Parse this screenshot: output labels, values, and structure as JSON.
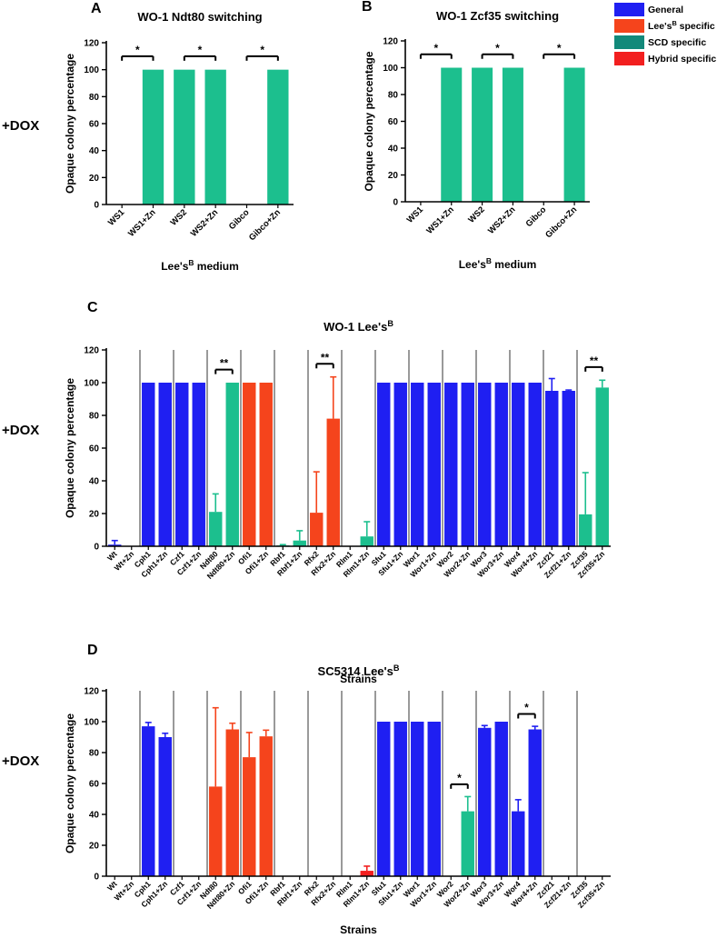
{
  "colors": {
    "General": "#1f1ff2",
    "Lee's specific": "#f5441c",
    "SCD specific": "#1cbf8e",
    "Hybrid specific": "#f21f1f"
  },
  "legend": {
    "items": [
      {
        "key": "General",
        "label": "General",
        "color": "#1f1ff2"
      },
      {
        "key": "Lee's specific",
        "label": "Lee's",
        "sup": "B",
        "suffix": " specific",
        "color": "#f5441c"
      },
      {
        "key": "SCD specific",
        "label": "SCD specific",
        "color": "#12897a"
      },
      {
        "key": "Hybrid specific",
        "label": "Hybrid specific",
        "color": "#f21f1f"
      }
    ]
  },
  "side_labels": [
    "+DOX",
    "+DOX",
    "+DOX"
  ],
  "chart_data": [
    {
      "panel": "A",
      "type": "bar",
      "title": "WO-1 Ndt80 switching",
      "xlabel": "Lee's",
      "xlabel_sup": "B",
      "xlabel_suffix": " medium",
      "ylabel": "Opaque colony percentage",
      "ylim": [
        0,
        120
      ],
      "yticks": [
        0,
        20,
        40,
        60,
        80,
        100,
        120
      ],
      "categories": [
        "WS1",
        "WS1+Zn",
        "WS2",
        "WS2+Zn",
        "Gibco",
        "Gibco+Zn"
      ],
      "values": [
        0,
        100,
        100,
        100,
        0,
        100
      ],
      "groups": [
        "SCD specific",
        "SCD specific",
        "SCD specific",
        "SCD specific",
        "SCD specific",
        "SCD specific"
      ],
      "significance": [
        {
          "from": 0,
          "to": 1,
          "label": "*"
        },
        {
          "from": 2,
          "to": 3,
          "label": "*"
        },
        {
          "from": 4,
          "to": 5,
          "label": "*"
        }
      ]
    },
    {
      "panel": "B",
      "type": "bar",
      "title": "WO-1 Zcf35 switching",
      "xlabel": "Lee's",
      "xlabel_sup": "B",
      "xlabel_suffix": " medium",
      "ylabel": "Opaque colony percentage",
      "ylim": [
        0,
        120
      ],
      "yticks": [
        0,
        20,
        40,
        60,
        80,
        100,
        120
      ],
      "categories": [
        "WS1",
        "WS1+Zn",
        "WS2",
        "WS2+Zn",
        "Gibco",
        "Gibco+Zn"
      ],
      "values": [
        0,
        100,
        100,
        100,
        0,
        100
      ],
      "groups": [
        "SCD specific",
        "SCD specific",
        "SCD specific",
        "SCD specific",
        "SCD specific",
        "SCD specific"
      ],
      "significance": [
        {
          "from": 0,
          "to": 1,
          "label": "*"
        },
        {
          "from": 2,
          "to": 3,
          "label": "*"
        },
        {
          "from": 4,
          "to": 5,
          "label": "*"
        }
      ]
    },
    {
      "panel": "C",
      "type": "bar",
      "title": "WO-1 Lee's",
      "title_sup": "B",
      "xlabel": "Strains",
      "ylabel": "Opaque colony percentage",
      "ylim": [
        0,
        120
      ],
      "yticks": [
        0,
        20,
        40,
        60,
        80,
        100,
        120
      ],
      "categories": [
        "Wt",
        "Wt+Zn",
        "Cph1",
        "Cph1+Zn",
        "Czf1",
        "Czf1+Zn",
        "Ndt80",
        "Ndt80+Zn",
        "Ofi1",
        "Ofi1+Zn",
        "Rbf1",
        "Rbf1+Zn",
        "Rfx2",
        "Rfx2+Zn",
        "Rlm1",
        "Rlm1+Zn",
        "Sfu1",
        "Sfu1+Zn",
        "Wor1",
        "Wor1+Zn",
        "Wor2",
        "Wor2+Zn",
        "Wor3",
        "Wor3+Zn",
        "Wor4",
        "Wor4+Zn",
        "Zcf21",
        "Zcf21+Zn",
        "Zcf35",
        "Zcf35+Zn"
      ],
      "values": [
        1,
        0,
        100,
        100,
        100,
        100,
        21,
        100,
        100,
        100,
        0.5,
        3.5,
        20.5,
        78,
        0,
        6,
        100,
        100,
        100,
        100,
        100,
        100,
        100,
        100,
        100,
        100,
        95,
        95,
        19.5,
        97
      ],
      "errors": [
        2.5,
        0,
        0,
        0,
        0,
        0,
        11,
        0,
        0,
        0,
        0.5,
        6,
        25,
        25.5,
        0,
        9,
        0,
        0,
        0,
        0,
        0,
        0,
        0,
        0,
        0,
        0,
        7.5,
        0.5,
        25.5,
        4.5
      ],
      "groups": [
        "General",
        "General",
        "General",
        "General",
        "General",
        "General",
        "SCD specific",
        "SCD specific",
        "Lee's specific",
        "Lee's specific",
        "SCD specific",
        "SCD specific",
        "Lee's specific",
        "Lee's specific",
        "SCD specific",
        "SCD specific",
        "General",
        "General",
        "General",
        "General",
        "General",
        "General",
        "General",
        "General",
        "General",
        "General",
        "General",
        "General",
        "SCD specific",
        "SCD specific"
      ],
      "significance": [
        {
          "from": 6,
          "to": 7,
          "label": "**"
        },
        {
          "from": 12,
          "to": 13,
          "label": "**"
        },
        {
          "from": 28,
          "to": 29,
          "label": "**"
        }
      ]
    },
    {
      "panel": "D",
      "type": "bar",
      "title": "SC5314 Lee's",
      "title_sup": "B",
      "xlabel": "Strains",
      "ylabel": "Opaque colony percentage",
      "ylim": [
        0,
        120
      ],
      "yticks": [
        0,
        20,
        40,
        60,
        80,
        100,
        120
      ],
      "categories": [
        "Wt",
        "Wt+Zn",
        "Cph1",
        "Cph1+Zn",
        "Czf1",
        "Czf1+Zn",
        "Ndt80",
        "Ndt80+Zn",
        "Ofi1",
        "Ofi1+Zn",
        "Rbf1",
        "Rbf1+Zn",
        "Rfx2",
        "Rfx2+Zn",
        "Rlm1",
        "Rlm1+Zn",
        "Sfu1",
        "Sfu1+Zn",
        "Wor1",
        "Wor1+Zn",
        "Wor2",
        "Wor2+Zn",
        "Wor3",
        "Wor3+Zn",
        "Wor4",
        "Wor4+Zn",
        "Zcf21",
        "Zcf21+Zn",
        "Zcf35",
        "Zcf35+Zn"
      ],
      "values": [
        0,
        0,
        97,
        90,
        0,
        0,
        58,
        95,
        77,
        90.5,
        0,
        0,
        0,
        0,
        0,
        3.5,
        100,
        100,
        100,
        100,
        0,
        42,
        96,
        100,
        42,
        95,
        0,
        0,
        0,
        0
      ],
      "errors": [
        0,
        0,
        2.5,
        2.5,
        0,
        0,
        51,
        4,
        16,
        4,
        0,
        0,
        0,
        0,
        0,
        3,
        0,
        0,
        0,
        0,
        0,
        9.5,
        1.5,
        0,
        7.5,
        2,
        0,
        0,
        0,
        0
      ],
      "groups": [
        "General",
        "General",
        "General",
        "General",
        "General",
        "General",
        "Lee's specific",
        "Lee's specific",
        "Lee's specific",
        "Lee's specific",
        "General",
        "General",
        "General",
        "General",
        "Hybrid specific",
        "Hybrid specific",
        "General",
        "General",
        "General",
        "General",
        "SCD specific",
        "SCD specific",
        "General",
        "General",
        "General",
        "General",
        "General",
        "General",
        "General",
        "General"
      ],
      "significance": [
        {
          "from": 20,
          "to": 21,
          "label": "*"
        },
        {
          "from": 24,
          "to": 25,
          "label": "*"
        }
      ]
    }
  ]
}
